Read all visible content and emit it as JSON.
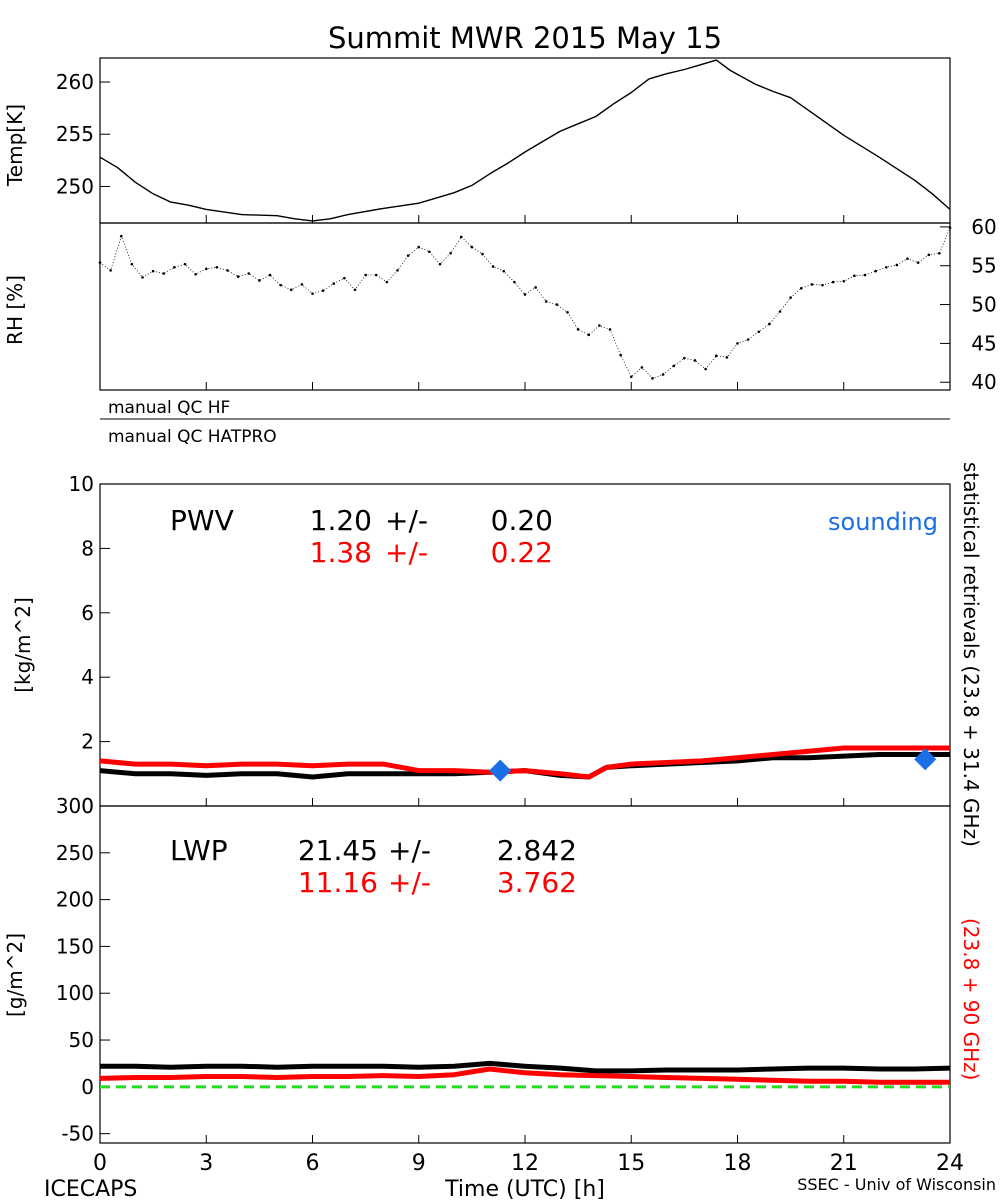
{
  "title": "Summit MWR 2015 May 15",
  "footer": {
    "left": "ICECAPS",
    "right": "SSEC - Univ of Wisconsin"
  },
  "qc": {
    "hf_label": "manual QC HF",
    "hatpro_label": "manual QC HATPRO"
  },
  "side_labels": {
    "black": "statistical retrievals (23.8 + 31.4 GHz)",
    "red": "(23.8 + 90 GHz)"
  },
  "colors": {
    "black_series": "#000000",
    "red_series": "#ff0000",
    "sounding": "#1a6fe6",
    "zero_line": "#22dd22"
  },
  "chart_data": [
    {
      "id": "temp",
      "type": "line",
      "ylabel": "Temp[K]",
      "xlim": [
        0,
        24
      ],
      "ylim": [
        246.5,
        262.3
      ],
      "yticks": [
        250,
        255,
        260
      ],
      "yaxis_side": "left",
      "grid": false,
      "series": [
        {
          "color": "#000000",
          "x": [
            0,
            0.5,
            1,
            1.5,
            2,
            2.5,
            3,
            4,
            5,
            5.5,
            6,
            6.5,
            7,
            8,
            9,
            9.5,
            10,
            10.5,
            11,
            11.5,
            12,
            12.5,
            13,
            13.5,
            14,
            14.5,
            15,
            15.5,
            16,
            16.5,
            17,
            17.4,
            17.8,
            18.5,
            19,
            19.5,
            20,
            21,
            22,
            22.5,
            23,
            23.5,
            24
          ],
          "y": [
            252.8,
            251.8,
            250.4,
            249.3,
            248.5,
            248.2,
            247.8,
            247.3,
            247.2,
            246.9,
            246.7,
            246.9,
            247.3,
            247.9,
            248.4,
            248.9,
            249.4,
            250.1,
            251.2,
            252.2,
            253.3,
            254.3,
            255.3,
            256.0,
            256.7,
            257.9,
            259.0,
            260.3,
            260.8,
            261.2,
            261.7,
            262.1,
            261.1,
            259.8,
            259.1,
            258.5,
            257.3,
            254.9,
            252.8,
            251.7,
            250.6,
            249.3,
            247.8
          ]
        }
      ]
    },
    {
      "id": "rh",
      "type": "scatter",
      "ylabel": "RH [%]",
      "xlim": [
        0,
        24
      ],
      "ylim": [
        39,
        60.5
      ],
      "yticks": [
        40,
        45,
        50,
        55,
        60
      ],
      "yaxis_side": "right",
      "grid": false,
      "series": [
        {
          "color": "#000000",
          "x": [
            0,
            0.3,
            0.6,
            0.9,
            1.2,
            1.5,
            1.8,
            2.1,
            2.4,
            2.7,
            3,
            3.3,
            3.6,
            3.9,
            4.2,
            4.5,
            4.8,
            5.1,
            5.4,
            5.7,
            6,
            6.3,
            6.6,
            6.9,
            7.2,
            7.5,
            7.8,
            8.1,
            8.4,
            8.7,
            9,
            9.3,
            9.6,
            9.9,
            10.2,
            10.5,
            10.8,
            11.1,
            11.4,
            11.7,
            12,
            12.3,
            12.6,
            12.9,
            13.2,
            13.5,
            13.8,
            14.1,
            14.4,
            14.7,
            15,
            15.3,
            15.6,
            15.9,
            16.2,
            16.5,
            16.8,
            17.1,
            17.4,
            17.7,
            18,
            18.3,
            18.6,
            18.9,
            19.2,
            19.5,
            19.8,
            20.1,
            20.4,
            20.7,
            21,
            21.3,
            21.6,
            21.9,
            22.2,
            22.5,
            22.8,
            23.1,
            23.4,
            23.7,
            24
          ],
          "y": [
            55.4,
            54.4,
            58.8,
            55.2,
            53.5,
            54.3,
            54.0,
            54.8,
            55.2,
            53.9,
            54.6,
            54.8,
            54.4,
            53.6,
            54.0,
            53.1,
            53.8,
            52.5,
            51.9,
            52.6,
            51.4,
            51.8,
            52.7,
            53.4,
            51.9,
            53.8,
            53.8,
            52.9,
            54.4,
            56.3,
            57.4,
            56.8,
            55.2,
            56.6,
            58.7,
            57.4,
            56.5,
            54.9,
            54.3,
            52.9,
            51.3,
            52.2,
            50.4,
            50.0,
            49.0,
            46.8,
            46.1,
            47.3,
            46.8,
            43.5,
            40.7,
            41.9,
            40.5,
            41.0,
            42.1,
            43.1,
            42.8,
            41.7,
            43.4,
            43.2,
            45.0,
            45.5,
            46.5,
            47.5,
            49.1,
            50.9,
            52.1,
            52.6,
            52.5,
            52.9,
            53.0,
            53.7,
            53.8,
            54.3,
            54.8,
            55.1,
            55.9,
            55.4,
            56.4,
            56.6,
            59.9
          ]
        }
      ]
    },
    {
      "id": "pwv",
      "type": "line",
      "label": "PWV",
      "ylabel": "[kg/m^2]",
      "xlim": [
        0,
        24
      ],
      "ylim": [
        0,
        10
      ],
      "yticks": [
        0,
        2,
        4,
        6,
        8,
        10
      ],
      "yaxis_side": "left",
      "grid": false,
      "stats": [
        {
          "color": "#000000",
          "mean": "1.20",
          "pm": "+/-",
          "std": "0.20"
        },
        {
          "color": "#ff0000",
          "mean": "1.38",
          "pm": "+/-",
          "std": "0.22"
        }
      ],
      "series": [
        {
          "color": "#000000",
          "x": [
            0,
            1,
            2,
            3,
            4,
            5,
            6,
            7,
            8,
            9,
            10,
            11,
            12,
            13,
            13.8,
            14.3,
            15,
            16,
            17,
            18,
            19,
            20,
            21,
            22,
            23,
            24
          ],
          "y": [
            1.1,
            1.0,
            1.0,
            0.95,
            1.0,
            1.0,
            0.9,
            1.0,
            1.0,
            1.0,
            1.0,
            1.05,
            1.1,
            0.95,
            0.9,
            1.2,
            1.25,
            1.3,
            1.35,
            1.4,
            1.5,
            1.5,
            1.55,
            1.6,
            1.6,
            1.6
          ]
        },
        {
          "color": "#ff0000",
          "x": [
            0,
            1,
            2,
            3,
            4,
            5,
            6,
            7,
            8,
            9,
            10,
            11,
            12,
            13,
            13.8,
            14.3,
            15,
            16,
            17,
            18,
            19,
            20,
            21,
            22,
            23,
            24
          ],
          "y": [
            1.4,
            1.3,
            1.3,
            1.25,
            1.3,
            1.3,
            1.25,
            1.3,
            1.3,
            1.1,
            1.1,
            1.05,
            1.1,
            1.0,
            0.9,
            1.2,
            1.3,
            1.35,
            1.4,
            1.5,
            1.6,
            1.7,
            1.8,
            1.8,
            1.8,
            1.8
          ]
        }
      ],
      "markers": {
        "label": "sounding",
        "color": "#1a6fe6",
        "x": [
          11.3,
          23.3
        ],
        "y": [
          1.1,
          1.45
        ]
      }
    },
    {
      "id": "lwp",
      "type": "line",
      "label": "LWP",
      "ylabel": "[g/m^2]",
      "xlabel": "Time (UTC) [h]",
      "xlim": [
        0,
        24
      ],
      "xticks": [
        0,
        3,
        6,
        9,
        12,
        15,
        18,
        21,
        24
      ],
      "ylim": [
        -60,
        300
      ],
      "yticks": [
        -50,
        0,
        50,
        100,
        150,
        200,
        250,
        300
      ],
      "yaxis_side": "left",
      "grid": false,
      "stats": [
        {
          "color": "#000000",
          "mean": "21.45",
          "pm": "+/-",
          "std": "2.842"
        },
        {
          "color": "#ff0000",
          "mean": "11.16",
          "pm": "+/-",
          "std": "3.762"
        }
      ],
      "series": [
        {
          "color": "#000000",
          "x": [
            0,
            1,
            2,
            3,
            4,
            5,
            6,
            7,
            8,
            9,
            10,
            11,
            12,
            13,
            14,
            15,
            16,
            17,
            18,
            19,
            20,
            21,
            22,
            23,
            24
          ],
          "y": [
            22,
            22,
            21,
            22,
            22,
            21,
            22,
            22,
            22,
            21,
            22,
            25,
            22,
            20,
            17,
            17,
            18,
            18,
            18,
            19,
            20,
            20,
            19,
            19,
            20
          ]
        },
        {
          "color": "#ff0000",
          "x": [
            0,
            1,
            2,
            3,
            4,
            5,
            6,
            7,
            8,
            9,
            10,
            11,
            12,
            13,
            14,
            15,
            16,
            17,
            18,
            19,
            20,
            21,
            22,
            23,
            24
          ],
          "y": [
            9,
            10,
            10,
            11,
            11,
            10,
            11,
            11,
            12,
            11,
            13,
            19,
            15,
            13,
            12,
            11,
            10,
            9,
            8,
            7,
            6,
            6,
            5,
            5,
            5
          ]
        }
      ],
      "reference_line": {
        "y": 0,
        "color": "#22dd22"
      }
    }
  ]
}
